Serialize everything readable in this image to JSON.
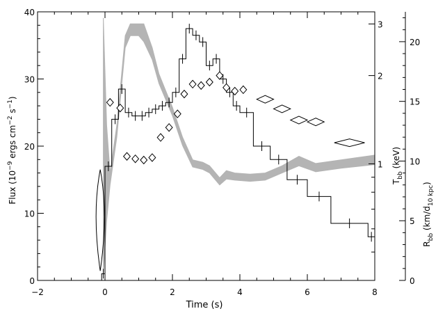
{
  "chart_data": {
    "type": "line",
    "xlabel": "Time (s)",
    "xlim": [
      -2,
      8
    ],
    "x_ticks": [
      -2,
      0,
      2,
      4,
      6,
      8
    ],
    "axes": {
      "flux": {
        "label": "Flux (10⁻⁹ ergs cm⁻² s⁻¹)",
        "ylim": [
          0,
          40
        ],
        "ticks": [
          0,
          10,
          20,
          30,
          40
        ]
      },
      "tbb": {
        "label": "T_bb (keV)",
        "scale": "log",
        "ylim": [
          0.4,
          3.3
        ],
        "ticks": [
          1,
          2,
          3
        ]
      },
      "rbb": {
        "label": "R_bb (km/d_10 kpc)",
        "ylim": [
          0,
          22.5
        ],
        "ticks": [
          0,
          5,
          10,
          15,
          20
        ]
      }
    },
    "grid": false,
    "series": [
      {
        "style": "histogram",
        "axis": "flux",
        "bins": [
          {
            "x0": -0.1,
            "x1": 0.0,
            "y": 1.0
          },
          {
            "x0": 0.0,
            "x1": 0.2,
            "y": 17.0
          },
          {
            "x0": 0.2,
            "x1": 0.4,
            "y": 24.0
          },
          {
            "x0": 0.4,
            "x1": 0.6,
            "y": 28.5
          },
          {
            "x0": 0.6,
            "x1": 0.8,
            "y": 25.0
          },
          {
            "x0": 0.8,
            "x1": 1.0,
            "y": 24.5
          },
          {
            "x0": 1.0,
            "x1": 1.2,
            "y": 24.5
          },
          {
            "x0": 1.2,
            "x1": 1.4,
            "y": 25.0
          },
          {
            "x0": 1.4,
            "x1": 1.6,
            "y": 25.5
          },
          {
            "x0": 1.6,
            "x1": 1.8,
            "y": 26.0
          },
          {
            "x0": 1.8,
            "x1": 2.0,
            "y": 26.5
          },
          {
            "x0": 2.0,
            "x1": 2.2,
            "y": 28.0
          },
          {
            "x0": 2.2,
            "x1": 2.4,
            "y": 33.0
          },
          {
            "x0": 2.4,
            "x1": 2.6,
            "y": 37.5
          },
          {
            "x0": 2.6,
            "x1": 2.8,
            "y": 36.5
          },
          {
            "x0": 2.8,
            "x1": 3.0,
            "y": 35.5
          },
          {
            "x0": 3.0,
            "x1": 3.2,
            "y": 32.0
          },
          {
            "x0": 3.2,
            "x1": 3.4,
            "y": 33.0
          },
          {
            "x0": 3.4,
            "x1": 3.6,
            "y": 30.0
          },
          {
            "x0": 3.6,
            "x1": 3.8,
            "y": 28.0
          },
          {
            "x0": 3.8,
            "x1": 4.0,
            "y": 26.0
          },
          {
            "x0": 4.0,
            "x1": 4.4,
            "y": 25.0
          },
          {
            "x0": 4.4,
            "x1": 4.9,
            "y": 20.0
          },
          {
            "x0": 4.9,
            "x1": 5.4,
            "y": 18.0
          },
          {
            "x0": 5.4,
            "x1": 6.0,
            "y": 15.0
          },
          {
            "x0": 6.0,
            "x1": 6.7,
            "y": 12.5
          },
          {
            "x0": 6.7,
            "x1": 7.8,
            "y": 8.5
          },
          {
            "x0": 7.8,
            "x1": 8.0,
            "y": 6.5
          }
        ]
      },
      {
        "style": "diamonds",
        "axis": "tbb",
        "points": [
          {
            "x": 0.15,
            "y": 1.62,
            "dx": 0.1,
            "dy": 0.03
          },
          {
            "x": 0.45,
            "y": 1.55,
            "dx": 0.1,
            "dy": 0.03
          },
          {
            "x": 0.65,
            "y": 1.06,
            "dx": 0.1,
            "dy": 0.02
          },
          {
            "x": 0.9,
            "y": 1.04,
            "dx": 0.1,
            "dy": 0.02
          },
          {
            "x": 1.15,
            "y": 1.03,
            "dx": 0.1,
            "dy": 0.02
          },
          {
            "x": 1.4,
            "y": 1.05,
            "dx": 0.1,
            "dy": 0.02
          },
          {
            "x": 1.65,
            "y": 1.23,
            "dx": 0.1,
            "dy": 0.02
          },
          {
            "x": 1.9,
            "y": 1.33,
            "dx": 0.1,
            "dy": 0.02
          },
          {
            "x": 2.15,
            "y": 1.48,
            "dx": 0.1,
            "dy": 0.03
          },
          {
            "x": 2.35,
            "y": 1.73,
            "dx": 0.1,
            "dy": 0.03
          },
          {
            "x": 2.6,
            "y": 1.87,
            "dx": 0.1,
            "dy": 0.04
          },
          {
            "x": 2.85,
            "y": 1.85,
            "dx": 0.1,
            "dy": 0.04
          },
          {
            "x": 3.1,
            "y": 1.9,
            "dx": 0.1,
            "dy": 0.04
          },
          {
            "x": 3.4,
            "y": 2.0,
            "dx": 0.1,
            "dy": 0.05
          },
          {
            "x": 3.6,
            "y": 1.82,
            "dx": 0.1,
            "dy": 0.04
          },
          {
            "x": 3.85,
            "y": 1.77,
            "dx": 0.1,
            "dy": 0.04
          },
          {
            "x": 4.1,
            "y": 1.79,
            "dx": 0.1,
            "dy": 0.04
          },
          {
            "x": 4.75,
            "y": 1.66,
            "dx": 0.25,
            "dy": 0.02
          },
          {
            "x": 5.25,
            "y": 1.54,
            "dx": 0.25,
            "dy": 0.02
          },
          {
            "x": 5.75,
            "y": 1.41,
            "dx": 0.25,
            "dy": 0.02
          },
          {
            "x": 6.25,
            "y": 1.39,
            "dx": 0.25,
            "dy": 0.02
          },
          {
            "x": 7.25,
            "y": 1.18,
            "dx": 0.45,
            "dy": 0.02
          }
        ]
      },
      {
        "style": "band",
        "axis": "rbb",
        "points": [
          {
            "x": -0.05,
            "lo": 0.5,
            "hi": 22.0
          },
          {
            "x": 0.05,
            "lo": 5.0,
            "hi": 13.0
          },
          {
            "x": 0.15,
            "lo": 8.0,
            "hi": 9.0
          },
          {
            "x": 0.35,
            "lo": 12.0,
            "hi": 13.0
          },
          {
            "x": 0.6,
            "lo": 19.5,
            "hi": 20.5
          },
          {
            "x": 0.75,
            "lo": 20.5,
            "hi": 21.5
          },
          {
            "x": 1.0,
            "lo": 20.5,
            "hi": 21.5
          },
          {
            "x": 1.15,
            "lo": 20.0,
            "hi": 21.5
          },
          {
            "x": 1.4,
            "lo": 18.5,
            "hi": 19.5
          },
          {
            "x": 1.6,
            "lo": 16.5,
            "hi": 17.3
          },
          {
            "x": 2.0,
            "lo": 13.8,
            "hi": 14.5
          },
          {
            "x": 2.3,
            "lo": 11.3,
            "hi": 12.0
          },
          {
            "x": 2.6,
            "lo": 9.5,
            "hi": 10.1
          },
          {
            "x": 2.9,
            "lo": 9.3,
            "hi": 9.9
          },
          {
            "x": 3.1,
            "lo": 9.0,
            "hi": 9.6
          },
          {
            "x": 3.4,
            "lo": 8.0,
            "hi": 8.6
          },
          {
            "x": 3.6,
            "lo": 8.5,
            "hi": 9.2
          },
          {
            "x": 3.85,
            "lo": 8.4,
            "hi": 9.0
          },
          {
            "x": 4.3,
            "lo": 8.3,
            "hi": 8.9
          },
          {
            "x": 4.75,
            "lo": 8.4,
            "hi": 9.0
          },
          {
            "x": 5.25,
            "lo": 9.0,
            "hi": 9.6
          },
          {
            "x": 5.75,
            "lo": 9.6,
            "hi": 10.4
          },
          {
            "x": 6.25,
            "lo": 9.1,
            "hi": 9.8
          },
          {
            "x": 7.0,
            "lo": 9.4,
            "hi": 10.1
          },
          {
            "x": 8.0,
            "lo": 9.7,
            "hi": 10.5
          }
        ]
      }
    ],
    "colors": {
      "axes": "#000000",
      "histogram": "#000000",
      "band": "#b4b4b4",
      "diamond_edge": "#000000"
    }
  }
}
